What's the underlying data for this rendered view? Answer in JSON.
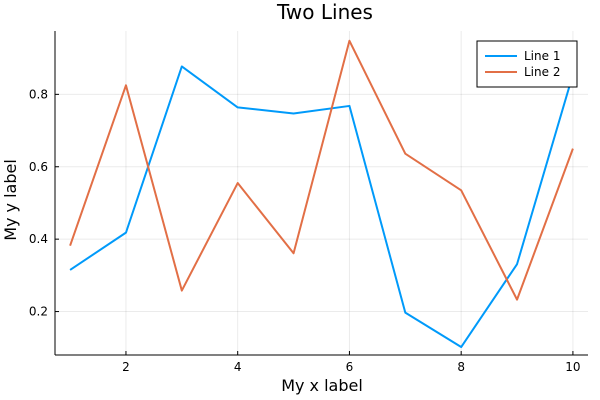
{
  "chart_data": {
    "type": "line",
    "title": "Two Lines",
    "xlabel": "My x label",
    "ylabel": "My y label",
    "x": [
      1,
      2,
      3,
      4,
      5,
      6,
      7,
      8,
      9,
      10
    ],
    "xlim": [
      0.73,
      10.27
    ],
    "ylim": [
      0.08,
      0.975
    ],
    "xticks": [
      2,
      4,
      6,
      8,
      10
    ],
    "yticks": [
      0.2,
      0.4,
      0.6,
      0.8
    ],
    "xtick_labels": [
      "2",
      "4",
      "6",
      "8",
      "10"
    ],
    "ytick_labels": [
      "0.2",
      "0.4",
      "0.6",
      "0.8"
    ],
    "grid": true,
    "legend_position": "top-right",
    "series": [
      {
        "name": "Line 1",
        "color": "#009AFA",
        "values": [
          0.315,
          0.418,
          0.877,
          0.764,
          0.747,
          0.768,
          0.197,
          0.102,
          0.331,
          0.855
        ]
      },
      {
        "name": "Line 2",
        "color": "#E26F46",
        "values": [
          0.382,
          0.825,
          0.258,
          0.555,
          0.361,
          0.948,
          0.636,
          0.535,
          0.233,
          0.65
        ]
      }
    ]
  }
}
